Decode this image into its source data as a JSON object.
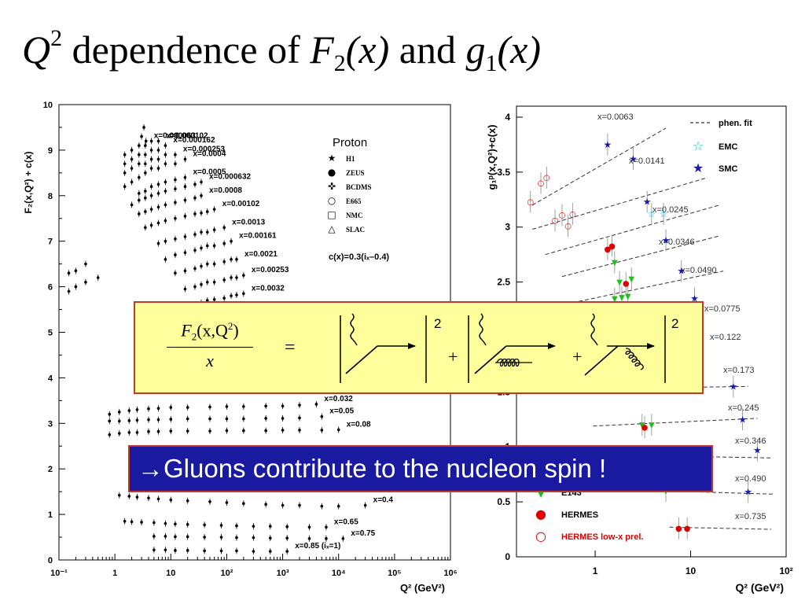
{
  "title": {
    "q": "Q",
    "q_exp": "2",
    "mid": " dependence of ",
    "f": "F",
    "f_sub": "2",
    "fx": "(x)",
    "and": " and ",
    "g": "g",
    "g_sub": "1",
    "gx": "(x)"
  },
  "formula": {
    "lhs_num_f": "F",
    "lhs_num_sub": "2",
    "lhs_num_args": "(x,Q",
    "lhs_num_exp": "2",
    "lhs_num_close": ")",
    "lhs_den": "x",
    "equals": "=",
    "plus": "+",
    "square": "2"
  },
  "banner": {
    "text": "→Gluons contribute to the nucleon spin !"
  },
  "chart_data": [
    {
      "type": "scatter",
      "title": "",
      "ylabel": "F₂(x,Q²) + c(x)",
      "xlabel": "Q² (GeV²)",
      "xscale": "log",
      "xlim": [
        0.1,
        1000000
      ],
      "ylim": [
        0,
        10
      ],
      "xticks": [
        "10⁻¹",
        "1",
        "10",
        "10²",
        "10³",
        "10⁴",
        "10⁵",
        "10⁶"
      ],
      "yticks": [
        "0",
        "1",
        "2",
        "3",
        "4",
        "5",
        "6",
        "7",
        "8",
        "9",
        "10"
      ],
      "legend_title": "Proton",
      "legend": [
        {
          "symbol": "★",
          "label": "H1"
        },
        {
          "symbol": "●",
          "label": "ZEUS"
        },
        {
          "symbol": "✜",
          "label": "BCDMS"
        },
        {
          "symbol": "○",
          "label": "E665"
        },
        {
          "symbol": "□",
          "label": "NMC"
        },
        {
          "symbol": "△",
          "label": "SLAC"
        }
      ],
      "annotation": "c(x)=0.3(iₓ–0.4)",
      "series": [
        {
          "label": "x=0.000063",
          "x": [
            3,
            3.3,
            3.6
          ],
          "y": [
            9.3,
            9.5,
            9.2
          ]
        },
        {
          "label": "x=0.000102",
          "x": [
            1.5,
            2,
            2.7,
            3.5,
            4.5,
            6
          ],
          "y": [
            8.9,
            9.0,
            9.1,
            9.1,
            9.2,
            9.2
          ]
        },
        {
          "label": "x=0.000162",
          "x": [
            1.5,
            2,
            2.7,
            3.5,
            4.5,
            6,
            8
          ],
          "y": [
            8.7,
            8.8,
            8.9,
            8.9,
            9.0,
            9.0,
            9.1
          ]
        },
        {
          "label": "x=0.000253",
          "x": [
            1.5,
            2,
            2.7,
            3.5,
            4.5,
            6,
            8,
            12
          ],
          "y": [
            8.5,
            8.6,
            8.7,
            8.7,
            8.8,
            8.8,
            8.9,
            8.9
          ]
        },
        {
          "label": "x=0.0004",
          "x": [
            1.5,
            2,
            2.7,
            3.5,
            4.5,
            6,
            8,
            12,
            18
          ],
          "y": [
            8.2,
            8.3,
            8.4,
            8.5,
            8.6,
            8.6,
            8.7,
            8.7,
            8.8
          ]
        },
        {
          "label": "x=0.0005",
          "x": [
            2.7,
            3.5,
            4.5,
            6,
            8,
            12,
            18
          ],
          "y": [
            8.05,
            8.1,
            8.2,
            8.25,
            8.3,
            8.35,
            8.4
          ]
        },
        {
          "label": "x=0.000632",
          "x": [
            2,
            2.7,
            3.5,
            4.5,
            6,
            8,
            12,
            18,
            27,
            35
          ],
          "y": [
            7.8,
            7.9,
            7.95,
            8.0,
            8.05,
            8.1,
            8.15,
            8.2,
            8.25,
            8.3
          ]
        },
        {
          "label": "x=0.0008",
          "x": [
            2.7,
            3.5,
            4.5,
            6,
            8,
            12,
            18,
            27,
            35
          ],
          "y": [
            7.6,
            7.65,
            7.7,
            7.75,
            7.8,
            7.85,
            7.9,
            7.95,
            8.0
          ]
        },
        {
          "label": "x=0.00102",
          "x": [
            3.5,
            4.5,
            6,
            8,
            12,
            18,
            27,
            35,
            45,
            60
          ],
          "y": [
            7.3,
            7.35,
            7.4,
            7.45,
            7.5,
            7.55,
            7.6,
            7.62,
            7.65,
            7.7
          ]
        },
        {
          "label": "x=0.0013",
          "x": [
            6,
            8,
            12,
            18,
            27,
            35,
            45,
            60,
            90
          ],
          "y": [
            6.95,
            7.0,
            7.05,
            7.1,
            7.15,
            7.2,
            7.2,
            7.25,
            7.3
          ]
        },
        {
          "label": "x=0.00161",
          "x": [
            8,
            12,
            18,
            27,
            35,
            45,
            60,
            90,
            120
          ],
          "y": [
            6.6,
            6.7,
            6.75,
            6.8,
            6.85,
            6.9,
            6.9,
            6.95,
            7.0
          ]
        },
        {
          "label": "x=0.0021",
          "x": [
            12,
            18,
            27,
            35,
            45,
            60,
            90,
            120,
            150
          ],
          "y": [
            6.3,
            6.35,
            6.4,
            6.45,
            6.5,
            6.5,
            6.55,
            6.6,
            6.6
          ]
        },
        {
          "label": "x=0.00253",
          "x": [
            0.15,
            0.2,
            0.3,
            18,
            27,
            35,
            45,
            60,
            90,
            120,
            150,
            200
          ],
          "y": [
            6.3,
            6.35,
            6.5,
            5.95,
            6.0,
            6.05,
            6.1,
            6.1,
            6.15,
            6.2,
            6.2,
            6.25
          ]
        },
        {
          "label": "x=0.0032",
          "x": [
            0.15,
            0.2,
            0.3,
            0.5,
            27,
            35,
            45,
            60,
            90,
            120,
            150,
            200
          ],
          "y": [
            5.9,
            6.0,
            6.1,
            6.2,
            5.6,
            5.65,
            5.7,
            5.72,
            5.75,
            5.8,
            5.82,
            5.85
          ]
        },
        {
          "label": "x=0.032",
          "x": [
            0.8,
            1.2,
            1.8,
            2.5,
            4,
            6,
            10,
            20,
            50,
            100,
            200,
            500,
            1000,
            2000,
            4000
          ],
          "y": [
            3.2,
            3.25,
            3.28,
            3.3,
            3.32,
            3.33,
            3.35,
            3.35,
            3.36,
            3.37,
            3.37,
            3.38,
            3.38,
            3.4,
            3.42
          ]
        },
        {
          "label": "x=0.05",
          "x": [
            0.8,
            1.2,
            1.8,
            2.5,
            4,
            6,
            10,
            20,
            50,
            100,
            200,
            500,
            1000,
            2000,
            5000
          ],
          "y": [
            3.05,
            3.05,
            3.06,
            3.07,
            3.08,
            3.08,
            3.09,
            3.1,
            3.1,
            3.1,
            3.1,
            3.11,
            3.11,
            3.12,
            3.15
          ]
        },
        {
          "label": "x=0.08",
          "x": [
            0.8,
            1.2,
            1.8,
            2.5,
            4,
            6,
            10,
            20,
            50,
            100,
            200,
            500,
            1000,
            2000,
            5000,
            10000
          ],
          "y": [
            2.75,
            2.78,
            2.8,
            2.8,
            2.82,
            2.82,
            2.83,
            2.83,
            2.83,
            2.84,
            2.84,
            2.84,
            2.85,
            2.85,
            2.85,
            2.86
          ]
        },
        {
          "label": "x=0.4",
          "x": [
            1.2,
            1.8,
            2.5,
            4,
            6,
            10,
            20,
            50,
            100,
            200,
            500,
            1000,
            2000,
            5000,
            10000,
            30000
          ],
          "y": [
            1.42,
            1.4,
            1.38,
            1.36,
            1.34,
            1.32,
            1.3,
            1.28,
            1.26,
            1.24,
            1.22,
            1.2,
            1.2,
            1.18,
            1.18,
            1.2
          ]
        },
        {
          "label": "x=0.65",
          "x": [
            1.5,
            2,
            3,
            5,
            8,
            12,
            20,
            40,
            80,
            150,
            300,
            600,
            1200,
            3000,
            6000
          ],
          "y": [
            0.85,
            0.84,
            0.83,
            0.82,
            0.8,
            0.79,
            0.78,
            0.77,
            0.76,
            0.75,
            0.74,
            0.74,
            0.73,
            0.72,
            0.72
          ]
        },
        {
          "label": "x=0.75",
          "x": [
            5,
            8,
            12,
            20,
            40,
            80,
            150,
            300,
            600,
            1200,
            3000,
            6000,
            12000
          ],
          "y": [
            0.52,
            0.52,
            0.51,
            0.51,
            0.5,
            0.5,
            0.49,
            0.49,
            0.48,
            0.48,
            0.47,
            0.47,
            0.47
          ]
        },
        {
          "label": "x=0.85 (iₓ=1)",
          "x": [
            5,
            8,
            12,
            20,
            40,
            80,
            150,
            300,
            600,
            1200
          ],
          "y": [
            0.22,
            0.22,
            0.21,
            0.21,
            0.2,
            0.2,
            0.2,
            0.19,
            0.19,
            0.19
          ]
        }
      ]
    },
    {
      "type": "scatter",
      "title": "",
      "ylabel": "g₁ᵖ(x,Q²)+c(x)",
      "xlabel": "Q² (GeV²)",
      "xscale": "log",
      "xlim": [
        0.15,
        100
      ],
      "ylim": [
        0,
        4.1
      ],
      "xticks": [
        "1",
        "10",
        "10²"
      ],
      "yticks": [
        "0",
        "0.5",
        "1",
        "1.5",
        "2",
        "2.5",
        "3",
        "3.5",
        "4"
      ],
      "legend": [
        {
          "symbol": "dashed",
          "label": "phen. fit",
          "color": "#000000"
        },
        {
          "symbol": "☆",
          "label": "EMC",
          "color": "#00bcd4"
        },
        {
          "symbol": "★",
          "label": "SMC",
          "color": "#1a1ab0"
        },
        {
          "symbol": "▼",
          "label": "E143",
          "color": "#1fbf1f"
        },
        {
          "symbol": "●",
          "label": "HERMES",
          "color": "#e00000"
        },
        {
          "symbol": "○",
          "label": "HERMES low-x prel.",
          "color": "#e00000"
        }
      ],
      "bins": [
        {
          "label": "x=0.0063",
          "fit": [
            [
              0.22,
              3.2
            ],
            [
              5.5,
              3.9
            ]
          ]
        },
        {
          "label": "x=0.0141",
          "fit": [
            [
              0.22,
              2.98
            ],
            [
              15,
              3.45
            ]
          ]
        },
        {
          "label": "x=0.0245",
          "fit": [
            [
              0.3,
              2.75
            ],
            [
              20,
              3.2
            ]
          ]
        },
        {
          "label": "x=0.0346",
          "fit": [
            [
              0.45,
              2.55
            ],
            [
              20,
              2.92
            ]
          ]
        },
        {
          "label": "x=0.0490",
          "fit": [
            [
              0.5,
              2.3
            ],
            [
              22,
              2.6
            ]
          ]
        },
        {
          "label": "x=0.0775",
          "fit": []
        },
        {
          "label": "x=0.122",
          "fit": []
        },
        {
          "label": "x=0.173",
          "fit": [
            [
              1.2,
              1.53
            ],
            [
              40,
              1.55
            ]
          ]
        },
        {
          "label": "x=0.245",
          "fit": [
            [
              0.95,
              1.19
            ],
            [
              50,
              1.26
            ]
          ]
        },
        {
          "label": "x=0.346",
          "fit": [
            [
              3,
              0.92
            ],
            [
              70,
              0.9
            ]
          ]
        },
        {
          "label": "x=0.490",
          "fit": [
            [
              5,
              0.6
            ],
            [
              75,
              0.57
            ]
          ]
        },
        {
          "label": "x=0.735",
          "fit": [
            [
              6,
              0.27
            ],
            [
              70,
              0.25
            ]
          ]
        }
      ],
      "points": [
        {
          "set": "HERMES low-x prel.",
          "x": [
            0.21,
            0.27,
            0.31,
            0.38,
            0.45,
            0.52
          ],
          "y": [
            3.23,
            3.4,
            3.45,
            3.06,
            3.11,
            3.01
          ]
        },
        {
          "set": "HERMES low-x prel.",
          "x": [
            0.58
          ],
          "y": [
            3.12
          ]
        },
        {
          "set": "SMC",
          "x": [
            1.35,
            2.5
          ],
          "y": [
            3.75,
            3.62
          ]
        },
        {
          "set": "SMC",
          "x": [
            3.5,
            5.5
          ],
          "y": [
            3.23,
            2.88
          ]
        },
        {
          "set": "SMC",
          "x": [
            8,
            11
          ],
          "y": [
            2.6,
            2.35
          ]
        },
        {
          "set": "SMC",
          "x": [
            28,
            50
          ],
          "y": [
            1.55,
            0.97
          ]
        },
        {
          "set": "SMC",
          "x": [
            35,
            40
          ],
          "y": [
            1.25,
            0.59
          ]
        },
        {
          "set": "EMC",
          "x": [
            3.9,
            5.2
          ],
          "y": [
            3.12,
            3.12
          ]
        },
        {
          "set": "E143",
          "x": [
            1.6,
            1.8,
            2.4,
            3.1,
            3.9
          ],
          "y": [
            2.68,
            2.5,
            2.53,
            1.2,
            1.2
          ]
        },
        {
          "set": "E143",
          "x": [
            1.6,
            1.9,
            2.2,
            5.5
          ],
          "y": [
            2.35,
            2.36,
            2.37,
            0.6
          ]
        },
        {
          "set": "HERMES",
          "x": [
            1.35,
            1.5,
            2.1,
            3.3,
            7.5,
            9.2
          ],
          "y": [
            2.8,
            2.83,
            2.49,
            1.18,
            0.26,
            0.26
          ]
        }
      ]
    }
  ]
}
